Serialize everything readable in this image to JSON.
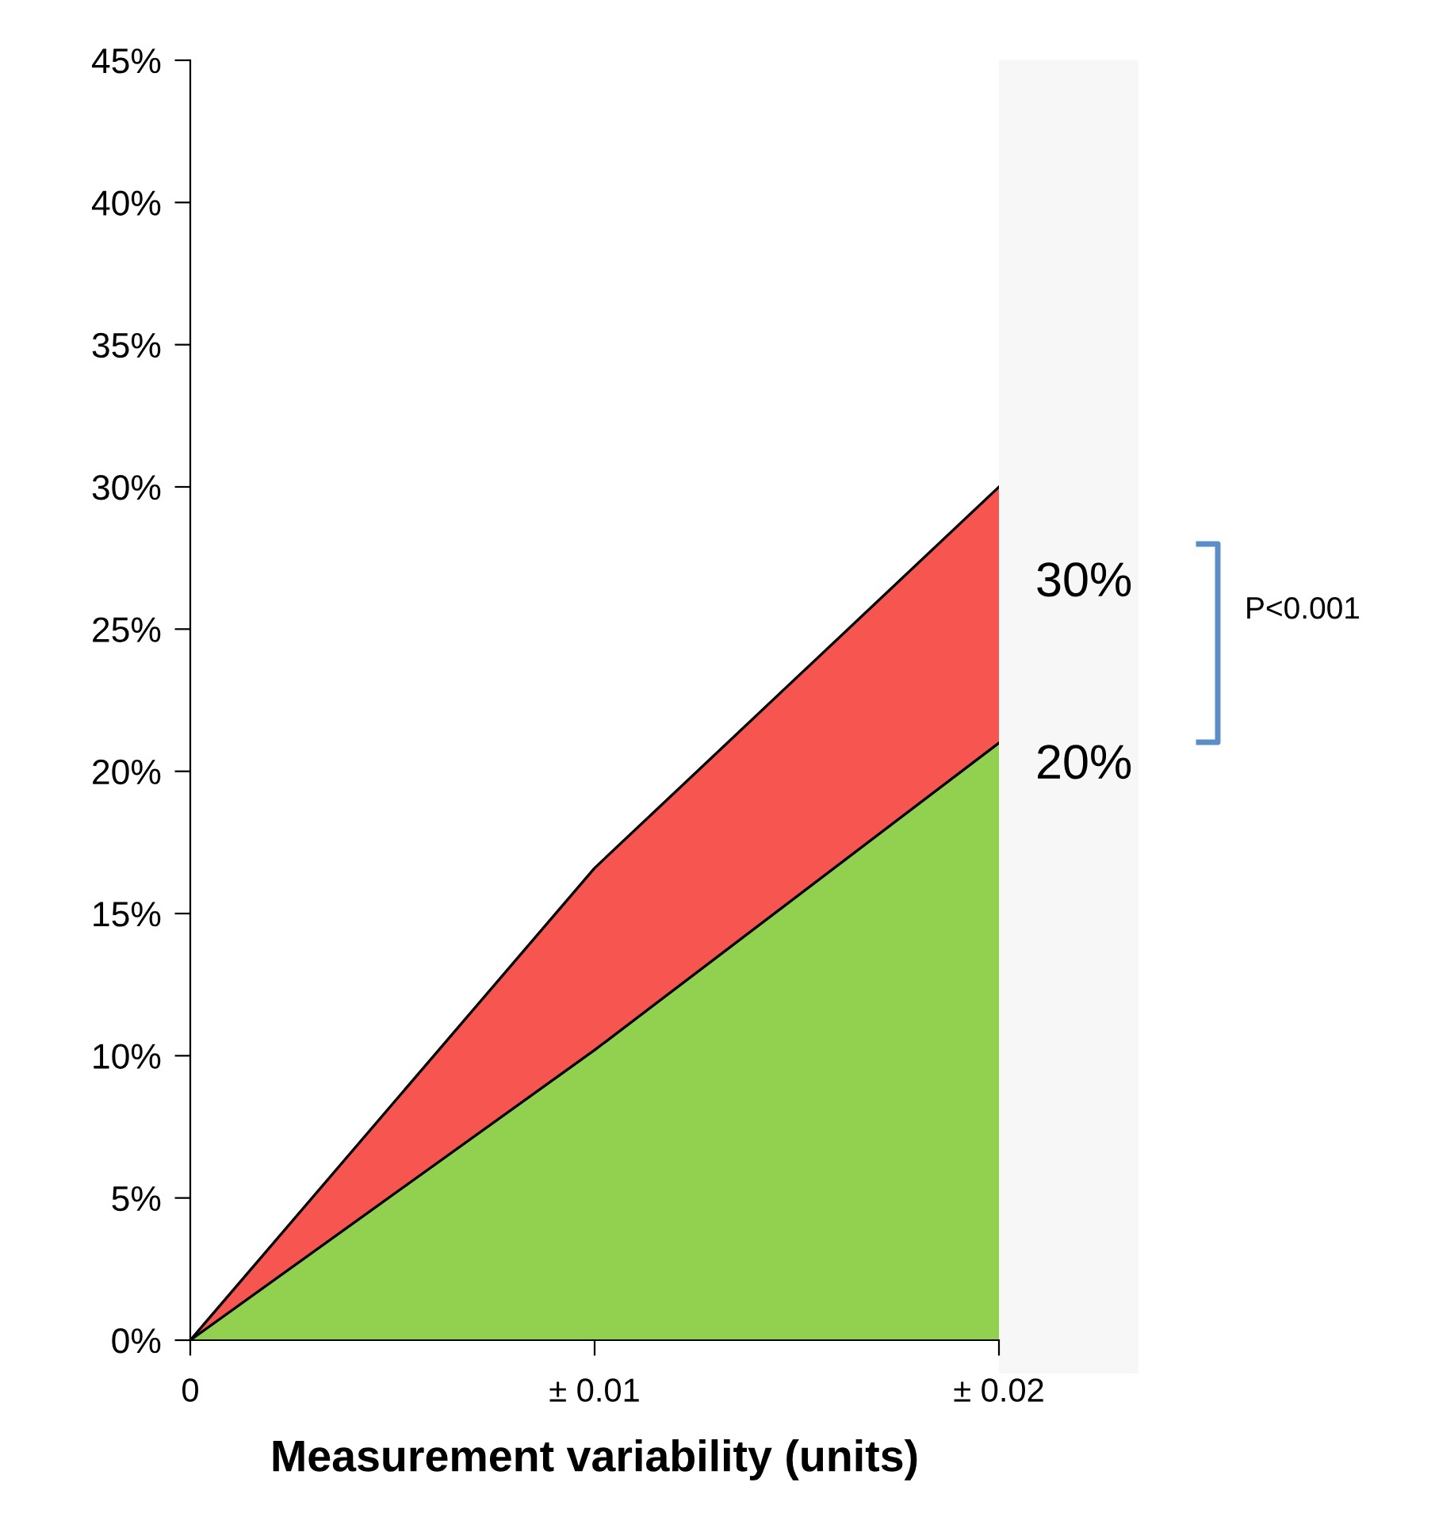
{
  "chart_data": {
    "type": "area",
    "stacked": true,
    "xlabel": "Measurement variability (units)",
    "categories": [
      "0",
      "± 0.01",
      "± 0.02"
    ],
    "series": [
      {
        "color": "#92d050",
        "values": [
          0,
          10.2,
          21
        ]
      },
      {
        "color": "#f75650",
        "values": [
          0,
          6.4,
          9
        ]
      }
    ],
    "ylim": [
      0,
      45
    ],
    "yticks": [
      {
        "value": 0,
        "label": "0%"
      },
      {
        "value": 5,
        "label": "5%"
      },
      {
        "value": 10,
        "label": "10%"
      },
      {
        "value": 15,
        "label": "15%"
      },
      {
        "value": 20,
        "label": "20%"
      },
      {
        "value": 25,
        "label": "25%"
      },
      {
        "value": 30,
        "label": "30%"
      },
      {
        "value": 35,
        "label": "35%"
      },
      {
        "value": 40,
        "label": "40%"
      },
      {
        "value": 45,
        "label": "45%"
      }
    ],
    "annotations": [
      "30%",
      "20%",
      "P<0.001"
    ],
    "grid": false,
    "legend": false
  }
}
